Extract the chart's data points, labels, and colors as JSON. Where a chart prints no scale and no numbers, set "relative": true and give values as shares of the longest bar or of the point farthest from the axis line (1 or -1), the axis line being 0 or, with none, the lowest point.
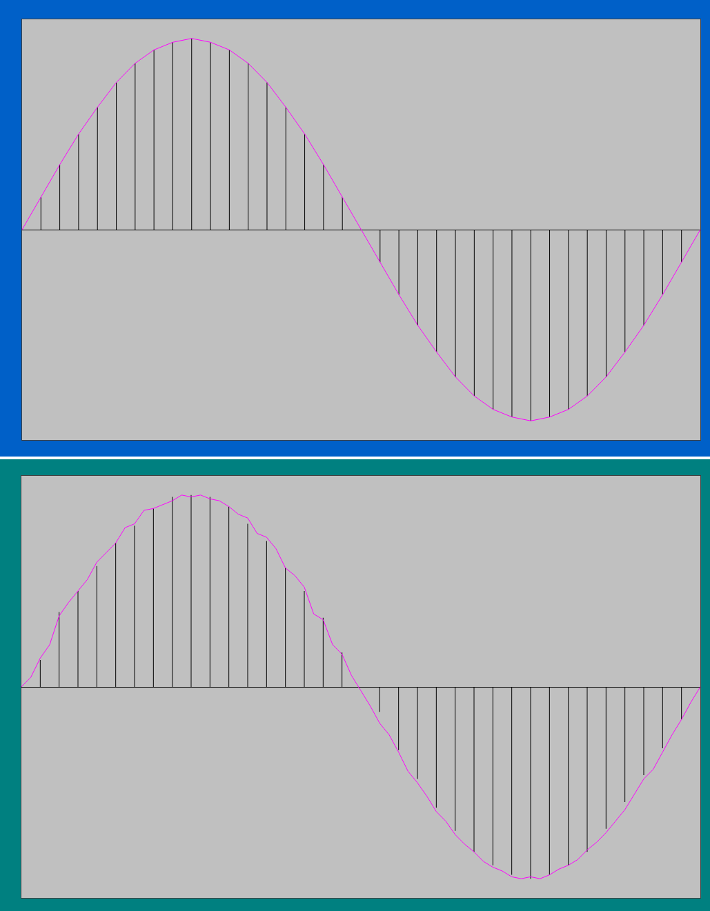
{
  "chart_data": [
    {
      "type": "line",
      "relative": true,
      "marker": "none",
      "line_style": "solid",
      "categories": [
        null,
        null,
        null,
        null,
        null,
        null,
        null,
        null,
        null,
        null,
        null,
        null,
        null,
        null,
        null,
        null,
        null,
        null,
        null,
        null,
        null,
        null,
        null,
        null,
        null,
        null,
        null,
        null,
        null,
        null,
        null,
        null,
        null,
        null,
        null,
        null,
        null
      ],
      "series": [
        {
          "color": "#ff00ff",
          "values": [
            0,
            0.17,
            0.34,
            0.5,
            0.64,
            0.77,
            0.87,
            0.94,
            0.98,
            1,
            0.98,
            0.94,
            0.87,
            0.77,
            0.64,
            0.5,
            0.34,
            0.17,
            0,
            -0.17,
            -0.34,
            -0.5,
            -0.64,
            -0.77,
            -0.87,
            -0.94,
            -0.98,
            -1,
            -0.98,
            -0.94,
            -0.87,
            -0.77,
            -0.64,
            -0.5,
            -0.34,
            -0.17,
            0
          ]
        }
      ]
    },
    {
      "type": "bar",
      "relative": true,
      "categories": [
        null,
        null,
        null,
        null,
        null,
        null,
        null,
        null,
        null,
        null,
        null,
        null,
        null,
        null,
        null,
        null,
        null,
        null,
        null,
        null,
        null,
        null,
        null,
        null,
        null,
        null,
        null,
        null,
        null,
        null,
        null,
        null,
        null,
        null,
        null,
        null,
        null
      ],
      "series": [
        {
          "color": "#000000",
          "values": [
            0,
            0.17,
            0.34,
            0.5,
            0.64,
            0.77,
            0.87,
            0.94,
            0.98,
            1,
            0.98,
            0.94,
            0.87,
            0.77,
            0.64,
            0.5,
            0.34,
            0.17,
            0,
            -0.17,
            -0.34,
            -0.5,
            -0.64,
            -0.77,
            -0.87,
            -0.94,
            -0.98,
            -1,
            -0.98,
            -0.94,
            -0.87,
            -0.77,
            -0.64,
            -0.5,
            -0.34,
            -0.17,
            0
          ]
        }
      ]
    },
    {
      "type": "line",
      "relative": true,
      "marker": "none",
      "line_style": "solid",
      "categories": [
        null,
        null,
        null,
        null,
        null,
        null,
        null,
        null,
        null,
        null,
        null,
        null,
        null,
        null,
        null,
        null,
        null,
        null,
        null,
        null,
        null,
        null,
        null,
        null,
        null,
        null,
        null,
        null,
        null,
        null,
        null,
        null,
        null,
        null,
        null,
        null,
        null,
        null,
        null,
        null,
        null,
        null,
        null,
        null,
        null,
        null,
        null,
        null,
        null,
        null,
        null,
        null,
        null,
        null,
        null,
        null,
        null,
        null,
        null,
        null,
        null,
        null,
        null,
        null,
        null,
        null,
        null,
        null,
        null,
        null,
        null,
        null,
        null
      ],
      "series": [
        {
          "color": "#ff00ff",
          "values": [
            0,
            0.05,
            0.15,
            0.22,
            0.37,
            0.44,
            0.5,
            0.56,
            0.65,
            0.7,
            0.75,
            0.83,
            0.85,
            0.92,
            0.93,
            0.95,
            0.97,
            1,
            0.99,
            1,
            0.98,
            0.97,
            0.94,
            0.9,
            0.88,
            0.8,
            0.78,
            0.72,
            0.62,
            0.58,
            0.52,
            0.38,
            0.35,
            0.22,
            0.17,
            0.06,
            -0.02,
            -0.1,
            -0.19,
            -0.25,
            -0.34,
            -0.44,
            -0.5,
            -0.57,
            -0.65,
            -0.7,
            -0.77,
            -0.82,
            -0.86,
            -0.91,
            -0.94,
            -0.96,
            -0.99,
            -1,
            -0.99,
            -1,
            -0.98,
            -0.95,
            -0.93,
            -0.9,
            -0.85,
            -0.81,
            -0.76,
            -0.7,
            -0.64,
            -0.56,
            -0.48,
            -0.43,
            -0.34,
            -0.25,
            -0.17,
            -0.08,
            0
          ]
        }
      ]
    },
    {
      "type": "bar",
      "relative": true,
      "categories": [
        null,
        null,
        null,
        null,
        null,
        null,
        null,
        null,
        null,
        null,
        null,
        null,
        null,
        null,
        null,
        null,
        null,
        null,
        null,
        null,
        null,
        null,
        null,
        null,
        null,
        null,
        null,
        null,
        null,
        null,
        null,
        null,
        null,
        null,
        null,
        null,
        null
      ],
      "series": [
        {
          "color": "#000000",
          "values": [
            0,
            0.14,
            0.39,
            0.5,
            0.63,
            0.75,
            0.84,
            0.93,
            0.99,
            1,
            0.99,
            0.94,
            0.85,
            0.76,
            0.62,
            0.5,
            0.36,
            0.18,
            null,
            -0.13,
            -0.33,
            -0.48,
            -0.63,
            -0.75,
            -0.86,
            -0.93,
            -0.98,
            -1,
            -0.98,
            -0.93,
            -0.86,
            -0.74,
            -0.6,
            -0.46,
            -0.32,
            -0.17,
            0
          ]
        }
      ]
    }
  ]
}
